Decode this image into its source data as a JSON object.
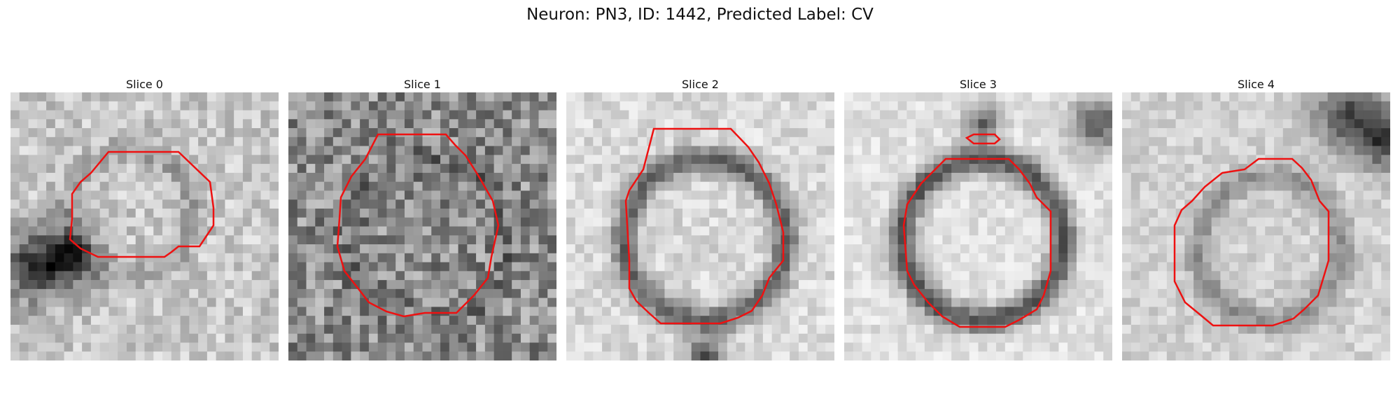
{
  "figure": {
    "title": "Neuron: PN3, ID: 1442, Predicted Label: CV"
  },
  "colors": {
    "contour": "#ee1111",
    "background": "#ffffff"
  },
  "panels": [
    {
      "title": "Slice 0",
      "contour_color": "#ee1111"
    },
    {
      "title": "Slice 1",
      "contour_color": "#ee1111"
    },
    {
      "title": "Slice 2",
      "contour_color": "#ee1111"
    },
    {
      "title": "Slice 3",
      "contour_color": "#ee1111"
    },
    {
      "title": "Slice 4",
      "contour_color": "#ee1111"
    }
  ]
}
